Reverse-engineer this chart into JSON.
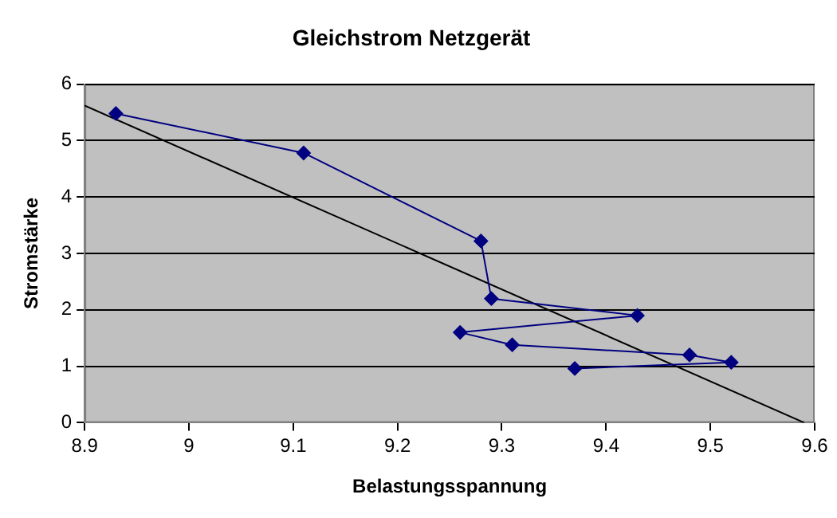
{
  "chart_data": {
    "type": "line",
    "title": "Gleichstrom Netzgerät",
    "xlabel": "Belastungsspannung",
    "ylabel": "Stromstärke",
    "xlim": [
      8.9,
      9.6
    ],
    "xticks": [
      8.9,
      9,
      9.1,
      9.2,
      9.3,
      9.4,
      9.5,
      9.6
    ],
    "ylim": [
      0,
      6
    ],
    "yticks": [
      0,
      1,
      2,
      3,
      4,
      5,
      6
    ],
    "grid": "y",
    "legend": false,
    "marker": "diamond",
    "line_style": "solid",
    "series": [
      {
        "color": "#000080",
        "x": [
          8.93,
          9.11,
          9.28,
          9.29,
          9.43,
          9.26,
          9.31,
          9.48,
          9.52,
          9.37
        ],
        "values": [
          5.48,
          4.78,
          3.22,
          2.2,
          1.9,
          1.6,
          1.38,
          1.2,
          1.07,
          0.96
        ]
      },
      {
        "type": "line",
        "color": "#000000",
        "marker": "none",
        "x": [
          8.9,
          9.59
        ],
        "values": [
          5.62,
          0
        ]
      }
    ]
  }
}
